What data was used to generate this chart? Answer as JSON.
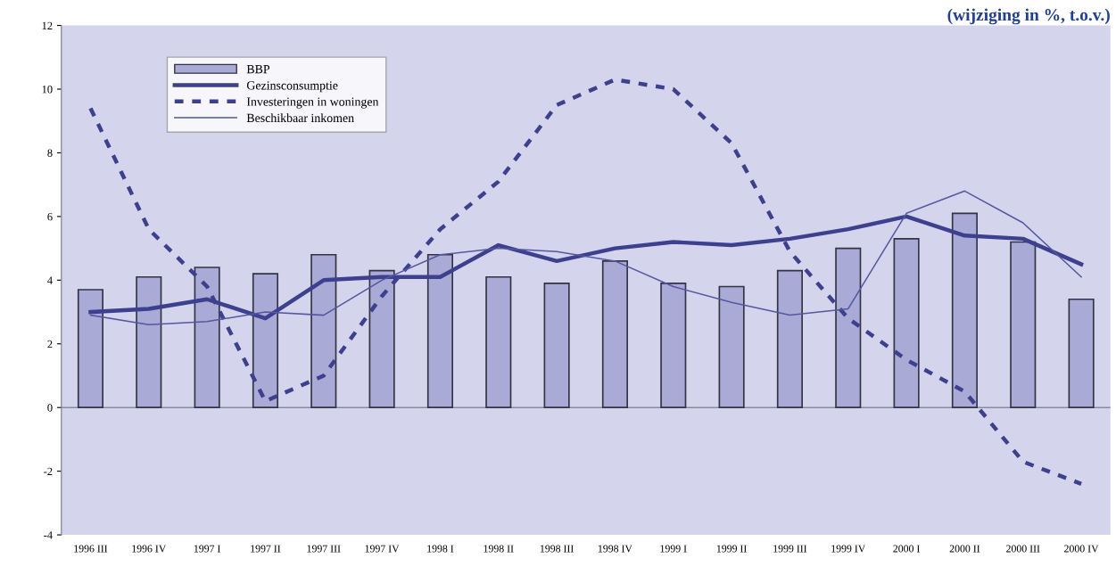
{
  "chart_data": {
    "type": "bar",
    "title": "(wijziging in %, t.o.v.)",
    "categories": [
      "1996 III",
      "1996 IV",
      "1997 I",
      "1997 II",
      "1997 III",
      "1997 IV",
      "1998 I",
      "1998 II",
      "1998 III",
      "1998 IV",
      "1999 I",
      "1999 II",
      "1999 III",
      "1999 IV",
      "2000 I",
      "2000 II",
      "2000 III",
      "2000 IV"
    ],
    "series": [
      {
        "name": "BBP",
        "color": "#a9aad6",
        "values": [
          3.7,
          4.1,
          4.4,
          4.2,
          4.8,
          4.3,
          4.8,
          4.1,
          3.9,
          4.6,
          3.9,
          3.8,
          4.3,
          5.0,
          5.3,
          6.1,
          5.2,
          3.4
        ]
      },
      {
        "name": "Gezinsconsumptie",
        "type": "line",
        "line_style": "solid",
        "color": "#3d3f8f",
        "values": [
          3.0,
          3.1,
          3.4,
          2.8,
          4.0,
          4.1,
          4.1,
          5.1,
          4.6,
          5.0,
          5.2,
          5.1,
          5.3,
          5.6,
          6.0,
          5.4,
          5.3,
          4.5
        ]
      },
      {
        "name": "Investeringen in woningen",
        "type": "line",
        "line_style": "dashed",
        "color": "#3d3f8f",
        "values": [
          9.4,
          5.6,
          3.8,
          0.2,
          1.0,
          3.5,
          5.6,
          7.1,
          9.5,
          10.3,
          10.0,
          8.3,
          4.9,
          2.8,
          1.5,
          0.5,
          -1.7,
          -2.4
        ]
      },
      {
        "name": "Beschikbaar inkomen",
        "type": "line",
        "line_style": "solid",
        "color": "#5557a0",
        "values": [
          2.9,
          2.6,
          2.7,
          3.0,
          2.9,
          4.0,
          4.8,
          5.0,
          4.9,
          4.6,
          3.8,
          3.3,
          2.9,
          3.1,
          6.1,
          6.8,
          5.8,
          4.1
        ]
      }
    ],
    "ylim": [
      -4,
      12
    ],
    "yticks": [
      -4,
      -2,
      0,
      2,
      4,
      6,
      8,
      10,
      12
    ],
    "ref_lines": [
      {
        "axis": "y",
        "value": 0,
        "color": "#8a8aa0"
      }
    ],
    "grid": false,
    "legend": "top left",
    "marker": "none"
  }
}
